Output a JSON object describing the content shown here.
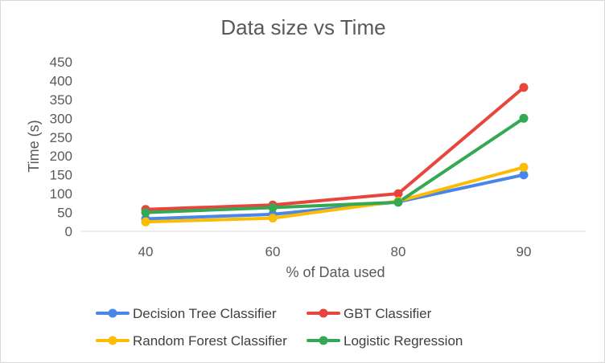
{
  "chart_data": {
    "type": "line",
    "title": "Data size vs Time",
    "xlabel": "% of Data used",
    "ylabel": "Time (s)",
    "categories": [
      "40",
      "60",
      "80",
      "90"
    ],
    "yticks": [
      "0",
      "50",
      "100",
      "150",
      "200",
      "250",
      "300",
      "350",
      "400",
      "450"
    ],
    "ylim": [
      0,
      450
    ],
    "grid": false,
    "legend_position": "bottom",
    "series": [
      {
        "name": "Decision Tree Classifier",
        "values": [
          33,
          45,
          78,
          150
        ],
        "color": "#4a86e8"
      },
      {
        "name": "GBT Classifier",
        "values": [
          58,
          70,
          100,
          382
        ],
        "color": "#e8453c"
      },
      {
        "name": "Random Forest Classifier",
        "values": [
          25,
          35,
          80,
          170
        ],
        "color": "#fbbc04"
      },
      {
        "name": "Logistic Regression",
        "values": [
          50,
          63,
          77,
          300
        ],
        "color": "#34a853"
      }
    ]
  }
}
